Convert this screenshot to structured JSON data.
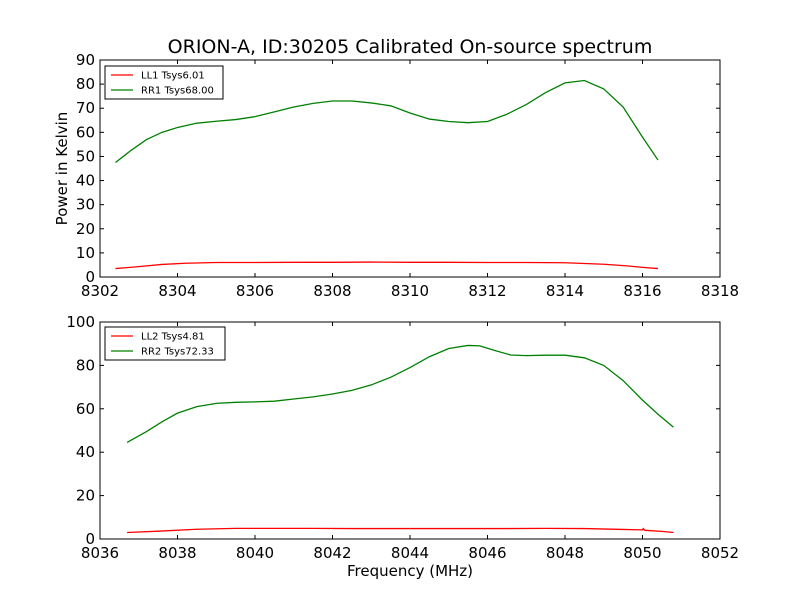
{
  "figure": {
    "title": "ORION-A, ID:30205 Calibrated On-source spectrum"
  },
  "chart_data": [
    {
      "type": "line",
      "title": "ORION-A, ID:30205 Calibrated On-source spectrum",
      "xlabel": "",
      "ylabel": "Power in Kelvin",
      "xlim": [
        8302,
        8318
      ],
      "ylim": [
        0,
        90
      ],
      "xticks": [
        8302,
        8304,
        8306,
        8308,
        8310,
        8312,
        8314,
        8316,
        8318
      ],
      "yticks": [
        0,
        10,
        20,
        30,
        40,
        50,
        60,
        70,
        80,
        90
      ],
      "grid": false,
      "legend": "top-left",
      "series": [
        {
          "name": "LL1 Tsys6.01",
          "color": "#ff0000",
          "x": [
            8302.4,
            8303,
            8303.6,
            8304.2,
            8305,
            8306,
            8307,
            8308,
            8309,
            8310,
            8311,
            8312,
            8313,
            8314,
            8315,
            8315.6,
            8316.0,
            8316.4
          ],
          "y": [
            3.5,
            4.3,
            5.2,
            5.7,
            6.0,
            6.0,
            6.1,
            6.1,
            6.2,
            6.1,
            6.1,
            6.0,
            6.0,
            5.9,
            5.3,
            4.6,
            4.0,
            3.5
          ]
        },
        {
          "name": "RR1 Tsys68.00",
          "color": "#008000",
          "x": [
            8302.4,
            8302.8,
            8303.2,
            8303.6,
            8304.0,
            8304.5,
            8305.0,
            8305.5,
            8306.0,
            8306.5,
            8307.0,
            8307.5,
            8308.0,
            8308.5,
            8309.0,
            8309.5,
            8310.0,
            8310.5,
            8311.0,
            8311.5,
            8312.0,
            8312.5,
            8313.0,
            8313.5,
            8314.0,
            8314.5,
            8315.0,
            8315.5,
            8316.0,
            8316.4
          ],
          "y": [
            47.5,
            52.5,
            57.0,
            60.0,
            62.0,
            63.8,
            64.6,
            65.3,
            66.5,
            68.5,
            70.5,
            72.0,
            73.0,
            73.0,
            72.2,
            71.0,
            68.0,
            65.5,
            64.5,
            64.0,
            64.5,
            67.5,
            71.5,
            76.5,
            80.5,
            81.5,
            78.0,
            70.5,
            58.0,
            48.5
          ]
        }
      ]
    },
    {
      "type": "line",
      "title": "",
      "xlabel": "Frequency (MHz)",
      "ylabel": "",
      "xlim": [
        8036,
        8052
      ],
      "ylim": [
        0,
        100
      ],
      "xticks": [
        8036,
        8038,
        8040,
        8042,
        8044,
        8046,
        8048,
        8050,
        8052
      ],
      "yticks": [
        0,
        20,
        40,
        60,
        80,
        100
      ],
      "grid": false,
      "legend": "top-left",
      "series": [
        {
          "name": "LL2 Tsys4.81",
          "color": "#ff0000",
          "x": [
            8036.7,
            8037.5,
            8038.5,
            8039.5,
            8040.5,
            8041.5,
            8042.5,
            8043.5,
            8044.5,
            8045.5,
            8046.5,
            8047.5,
            8048.5,
            8049.5,
            8050.0,
            8050.02,
            8050.06,
            8050.5,
            8050.8
          ],
          "y": [
            3.0,
            3.6,
            4.5,
            4.9,
            4.9,
            4.9,
            4.8,
            4.8,
            4.8,
            4.8,
            4.8,
            4.9,
            4.8,
            4.4,
            4.2,
            4.8,
            4.0,
            3.5,
            3.0
          ]
        },
        {
          "name": "RR2 Tsys72.33",
          "color": "#008000",
          "x": [
            8036.7,
            8037.2,
            8037.6,
            8038.0,
            8038.5,
            8039.0,
            8039.5,
            8040.0,
            8040.5,
            8041.0,
            8041.5,
            8042.0,
            8042.5,
            8043.0,
            8043.5,
            8044.0,
            8044.5,
            8045.0,
            8045.5,
            8045.8,
            8046.2,
            8046.6,
            8047.0,
            8047.5,
            8048.0,
            8048.5,
            8049.0,
            8049.5,
            8050.0,
            8050.4,
            8050.8
          ],
          "y": [
            44.5,
            49.5,
            54.0,
            58.0,
            61.0,
            62.5,
            63.0,
            63.2,
            63.5,
            64.5,
            65.5,
            66.8,
            68.5,
            71.0,
            74.5,
            79.0,
            84.0,
            87.8,
            89.2,
            89.0,
            86.8,
            84.8,
            84.5,
            84.7,
            84.7,
            83.5,
            80.0,
            73.0,
            64.0,
            57.5,
            51.5
          ]
        }
      ]
    }
  ]
}
